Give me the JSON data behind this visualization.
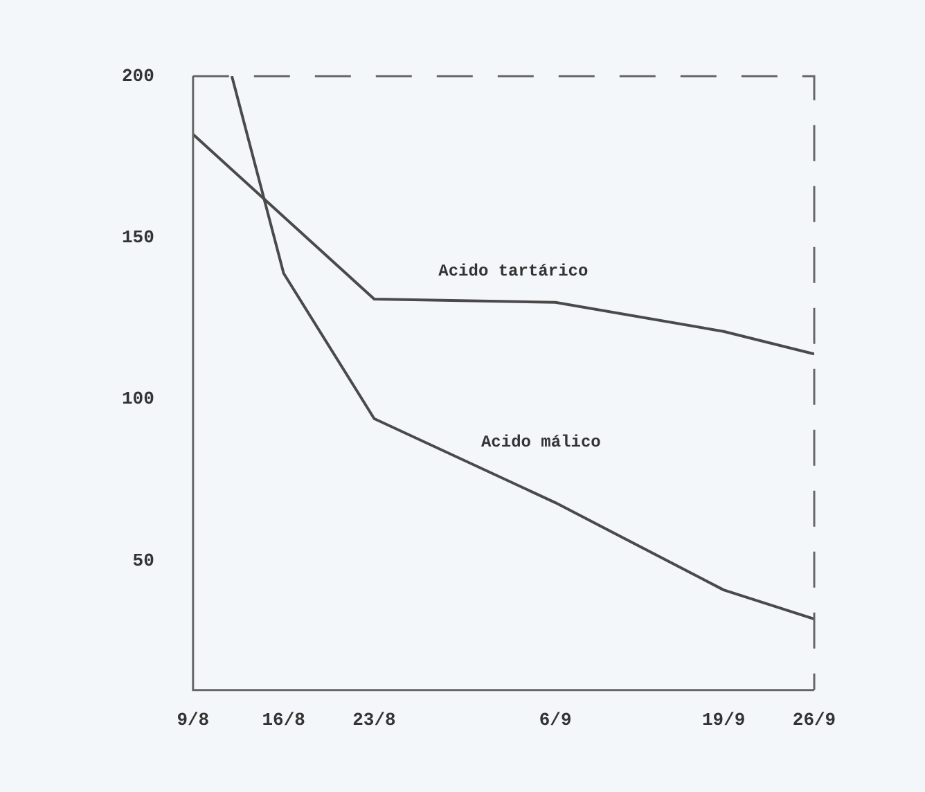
{
  "chart_data": {
    "type": "line",
    "xlim": [
      "--08-09",
      "--09-26"
    ],
    "xticks": [
      {
        "value": "--08-09",
        "label": "9/8"
      },
      {
        "value": "--08-16",
        "label": "16/8"
      },
      {
        "value": "--08-23",
        "label": "23/8"
      },
      {
        "value": "--09-06",
        "label": "6/9"
      },
      {
        "value": "--09-19",
        "label": "19/9"
      },
      {
        "value": "--09-26",
        "label": "26/9"
      }
    ],
    "ylim": [
      10,
      200
    ],
    "yticks": [
      50,
      100,
      150,
      200
    ],
    "grid": false,
    "legend": false,
    "marker": "none",
    "line_style": "solid",
    "series": [
      {
        "name": "Acido tartárico",
        "color": "#4a4a4a",
        "x": [
          "--08-09",
          "--08-23",
          "--09-06",
          "--09-19",
          "--09-26"
        ],
        "values": [
          182,
          131,
          130,
          121,
          114
        ]
      },
      {
        "name": "Acido málico",
        "color": "#4a4a4a",
        "x": [
          "--08-12",
          "--08-16",
          "--08-23",
          "--09-06",
          "--09-19",
          "--09-26"
        ],
        "values": [
          200,
          139,
          94,
          68,
          41,
          32
        ]
      }
    ]
  }
}
